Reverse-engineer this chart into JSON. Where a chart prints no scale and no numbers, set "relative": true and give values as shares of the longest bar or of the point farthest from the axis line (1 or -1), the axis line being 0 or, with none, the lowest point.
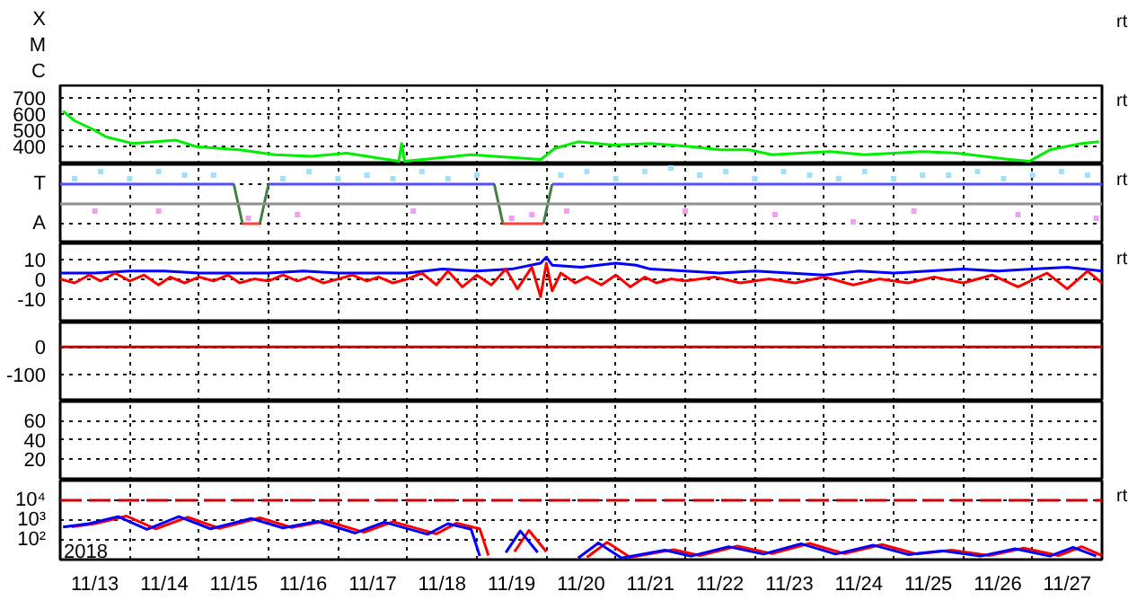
{
  "chart_data": [
    {
      "type": "other",
      "y_categories": [
        "X",
        "M",
        "C"
      ],
      "annotations": [
        "rt"
      ]
    },
    {
      "type": "line",
      "ylim": [
        290,
        780
      ],
      "yticks": [
        400,
        500,
        600,
        700
      ],
      "xlim": [
        "2018-11-13T00:00",
        "2018-11-28T00:00"
      ],
      "xticks": [
        {
          "value": "2018-11-14T00:00",
          "label": null
        },
        {
          "value": "2018-11-15T00:00",
          "label": null
        },
        {
          "value": "2018-11-16T00:00",
          "label": null
        },
        {
          "value": "2018-11-17T00:00",
          "label": null
        },
        {
          "value": "2018-11-18T00:00",
          "label": null
        },
        {
          "value": "2018-11-19T00:00",
          "label": null
        },
        {
          "value": "2018-11-20T00:00",
          "label": null
        },
        {
          "value": "2018-11-21T00:00",
          "label": null
        },
        {
          "value": "2018-11-22T00:00",
          "label": null
        },
        {
          "value": "2018-11-23T00:00",
          "label": null
        },
        {
          "value": "2018-11-24T00:00",
          "label": null
        },
        {
          "value": "2018-11-25T00:00",
          "label": null
        },
        {
          "value": "2018-11-26T00:00",
          "label": null
        },
        {
          "value": "2018-11-27T00:00",
          "label": null
        }
      ],
      "tick_labels": "y",
      "grid": true,
      "line_style": "solid",
      "annotations": [
        "rt"
      ],
      "series": [
        {
          "color": "#00ee00",
          "x": [
            "2018-11-13T01:00",
            "2018-11-13T05:00",
            "2018-11-13T11:00",
            "2018-11-13T16:00",
            "2018-11-14T01:00",
            "2018-11-14T16:00",
            "2018-11-14T23:00",
            "2018-11-15T14:00",
            "2018-11-16T02:00",
            "2018-11-16T15:00",
            "2018-11-17T03:00",
            "2018-11-17T21:00",
            "2018-11-17T22:00",
            "2018-11-17T23:00",
            "2018-11-18T22:00",
            "2018-11-19T22:00",
            "2018-11-20T03:00",
            "2018-11-20T11:00",
            "2018-11-20T23:00",
            "2018-11-21T12:00",
            "2018-11-22T02:00",
            "2018-11-22T12:00",
            "2018-11-22T22:00",
            "2018-11-23T06:00",
            "2018-11-24T02:00",
            "2018-11-24T14:00",
            "2018-11-25T10:00",
            "2018-11-25T22:00",
            "2018-11-26T16:00",
            "2018-11-26T23:00",
            "2018-11-27T06:00",
            "2018-11-27T17:00",
            "2018-11-27T23:00"
          ],
          "values": [
            620,
            560,
            510,
            460,
            420,
            440,
            400,
            380,
            350,
            340,
            360,
            310,
            420,
            310,
            350,
            320,
            390,
            430,
            410,
            420,
            400,
            380,
            380,
            350,
            370,
            350,
            370,
            360,
            320,
            310,
            380,
            420,
            430
          ]
        }
      ]
    },
    {
      "type": "line",
      "relative": true,
      "y_categories": [
        "T",
        "A"
      ],
      "xlim": [
        "2018-11-13T00:00",
        "2018-11-28T00:00"
      ],
      "xticks": [
        {
          "value": "2018-11-14T00:00",
          "label": null
        },
        {
          "value": "2018-11-15T00:00",
          "label": null
        },
        {
          "value": "2018-11-16T00:00",
          "label": null
        },
        {
          "value": "2018-11-17T00:00",
          "label": null
        },
        {
          "value": "2018-11-18T00:00",
          "label": null
        },
        {
          "value": "2018-11-19T00:00",
          "label": null
        },
        {
          "value": "2018-11-20T00:00",
          "label": null
        },
        {
          "value": "2018-11-21T00:00",
          "label": null
        },
        {
          "value": "2018-11-22T00:00",
          "label": null
        },
        {
          "value": "2018-11-23T00:00",
          "label": null
        },
        {
          "value": "2018-11-24T00:00",
          "label": null
        },
        {
          "value": "2018-11-25T00:00",
          "label": null
        },
        {
          "value": "2018-11-26T00:00",
          "label": null
        },
        {
          "value": "2018-11-27T00:00",
          "label": null
        }
      ],
      "tick_labels": "y",
      "grid": true,
      "line_style": "solid",
      "annotations": [
        "rt"
      ],
      "ref_lines": [
        {
          "axis": "y",
          "value": 0,
          "label": null,
          "color": "#909090"
        }
      ],
      "series": [
        {
          "type": "scatter",
          "color": "#a0e0f8",
          "x": [
            "2018-11-13T05:00",
            "2018-11-13T14:00",
            "2018-11-14T00:00",
            "2018-11-14T10:00",
            "2018-11-14T19:00",
            "2018-11-15T05:00",
            "2018-11-16T05:00",
            "2018-11-16T14:00",
            "2018-11-17T00:00",
            "2018-11-17T10:00",
            "2018-11-17T19:00",
            "2018-11-18T05:00",
            "2018-11-18T14:00",
            "2018-11-19T00:00",
            "2018-11-20T05:00",
            "2018-11-20T14:00",
            "2018-11-21T00:00",
            "2018-11-21T10:00",
            "2018-11-21T19:00",
            "2018-11-22T05:00",
            "2018-11-22T14:00",
            "2018-11-23T00:00",
            "2018-11-23T10:00",
            "2018-11-23T19:00",
            "2018-11-24T05:00",
            "2018-11-24T14:00",
            "2018-11-25T00:00",
            "2018-11-25T10:00",
            "2018-11-25T19:00",
            "2018-11-26T05:00",
            "2018-11-26T14:00",
            "2018-11-27T00:00",
            "2018-11-27T10:00",
            "2018-11-27T19:00"
          ],
          "values": [
            0.7,
            0.9,
            0.7,
            0.9,
            0.8,
            0.8,
            0.7,
            0.9,
            0.7,
            0.8,
            0.7,
            0.9,
            0.7,
            0.8,
            0.8,
            0.9,
            0.7,
            0.9,
            1,
            0.8,
            0.9,
            0.7,
            0.9,
            0.8,
            0.7,
            0.9,
            0.7,
            0.8,
            0.8,
            0.9,
            0.7,
            0.8,
            0.9,
            0.8
          ]
        },
        {
          "type": "scatter",
          "color": "#f0a0f0",
          "x": [
            "2018-11-13T12:00",
            "2018-11-14T10:00",
            "2018-11-15T17:00",
            "2018-11-16T10:00",
            "2018-11-18T02:00",
            "2018-11-19T12:00",
            "2018-11-19T19:00",
            "2018-11-20T07:00",
            "2018-11-22T00:00",
            "2018-11-23T07:00",
            "2018-11-24T10:00",
            "2018-11-25T07:00",
            "2018-11-26T19:00",
            "2018-11-27T22:00"
          ],
          "values": [
            -0.2,
            -0.2,
            -0.4,
            -0.3,
            -0.2,
            -0.4,
            -0.3,
            -0.2,
            -0.2,
            -0.3,
            -0.5,
            -0.2,
            -0.3,
            -0.4
          ]
        },
        {
          "color": "#5050ff",
          "x": [
            "2018-11-13T00:00",
            "2018-11-15T12:00",
            null,
            "2018-11-16T00:00",
            "2018-11-19T06:00",
            null,
            "2018-11-20T02:00",
            "2018-11-28T00:00"
          ],
          "values": [
            0.55,
            0.55,
            null,
            0.55,
            0.55,
            null,
            0.55,
            0.55
          ]
        },
        {
          "color": "#408040",
          "x": [
            "2018-11-15T12:00",
            "2018-11-15T15:00",
            null,
            "2018-11-15T21:00",
            "2018-11-16T00:00",
            null,
            "2018-11-19T06:00",
            "2018-11-19T09:00",
            null,
            "2018-11-19T23:00",
            "2018-11-20T02:00"
          ],
          "values": [
            0.55,
            -0.55,
            null,
            -0.55,
            0.55,
            null,
            0.55,
            -0.55,
            null,
            -0.55,
            0.55
          ]
        },
        {
          "color": "#ff4040",
          "x": [
            "2018-11-15T15:00",
            "2018-11-15T21:00",
            null,
            "2018-11-19T09:00",
            "2018-11-19T23:00"
          ],
          "values": [
            -0.55,
            -0.55,
            null,
            -0.55,
            -0.55
          ]
        }
      ]
    },
    {
      "type": "line",
      "ylim": [
        -22,
        18
      ],
      "yticks": [
        10,
        0,
        -10
      ],
      "xlim": [
        "2018-11-13T00:00",
        "2018-11-28T00:00"
      ],
      "xticks": [
        {
          "value": "2018-11-14T00:00",
          "label": null
        },
        {
          "value": "2018-11-15T00:00",
          "label": null
        },
        {
          "value": "2018-11-16T00:00",
          "label": null
        },
        {
          "value": "2018-11-17T00:00",
          "label": null
        },
        {
          "value": "2018-11-18T00:00",
          "label": null
        },
        {
          "value": "2018-11-19T00:00",
          "label": null
        },
        {
          "value": "2018-11-20T00:00",
          "label": null
        },
        {
          "value": "2018-11-21T00:00",
          "label": null
        },
        {
          "value": "2018-11-22T00:00",
          "label": null
        },
        {
          "value": "2018-11-23T00:00",
          "label": null
        },
        {
          "value": "2018-11-24T00:00",
          "label": null
        },
        {
          "value": "2018-11-25T00:00",
          "label": null
        },
        {
          "value": "2018-11-26T00:00",
          "label": null
        },
        {
          "value": "2018-11-27T00:00",
          "label": null
        }
      ],
      "tick_labels": "y",
      "grid": true,
      "line_style": "solid",
      "annotations": [
        "rt"
      ],
      "series": [
        {
          "color": "#0000ff",
          "x": [
            "2018-11-13T00:00",
            "2018-11-13T12:00",
            "2018-11-14T00:00",
            "2018-11-14T12:00",
            "2018-11-15T00:00",
            "2018-11-15T12:00",
            "2018-11-16T00:00",
            "2018-11-16T12:00",
            "2018-11-17T00:00",
            "2018-11-17T12:00",
            "2018-11-18T00:00",
            "2018-11-18T12:00",
            "2018-11-19T00:00",
            "2018-11-19T12:00",
            "2018-11-19T22:00",
            "2018-11-20T00:00",
            "2018-11-20T02:00",
            "2018-11-20T12:00",
            "2018-11-21T00:00",
            "2018-11-21T07:00",
            "2018-11-21T12:00",
            "2018-11-22T00:00",
            "2018-11-22T12:00",
            "2018-11-23T00:00",
            "2018-11-23T12:00",
            "2018-11-24T00:00",
            "2018-11-24T12:00",
            "2018-11-25T00:00",
            "2018-11-25T12:00",
            "2018-11-26T00:00",
            "2018-11-26T12:00",
            "2018-11-27T00:00",
            "2018-11-27T12:00",
            "2018-11-28T00:00"
          ],
          "values": [
            3,
            3,
            4,
            4,
            3,
            3,
            3,
            4,
            3,
            3,
            3,
            5,
            4,
            5,
            8,
            11,
            7,
            6,
            8,
            7,
            5,
            4,
            3,
            4,
            3,
            2,
            4,
            3,
            4,
            5,
            4,
            5,
            6,
            4
          ]
        },
        {
          "color": "#ff0000",
          "x": [
            "2018-11-13T00:00",
            "2018-11-13T05:00",
            "2018-11-13T10:00",
            "2018-11-13T14:00",
            "2018-11-13T19:00",
            "2018-11-14T00:00",
            "2018-11-14T05:00",
            "2018-11-14T10:00",
            "2018-11-14T14:00",
            "2018-11-14T19:00",
            "2018-11-15T00:00",
            "2018-11-15T05:00",
            "2018-11-15T10:00",
            "2018-11-15T14:00",
            "2018-11-15T19:00",
            "2018-11-16T00:00",
            "2018-11-16T05:00",
            "2018-11-16T10:00",
            "2018-11-16T14:00",
            "2018-11-16T19:00",
            "2018-11-17T00:00",
            "2018-11-17T05:00",
            "2018-11-17T10:00",
            "2018-11-17T14:00",
            "2018-11-17T19:00",
            "2018-11-18T00:00",
            "2018-11-18T05:00",
            "2018-11-18T10:00",
            "2018-11-18T14:00",
            "2018-11-18T19:00",
            "2018-11-19T00:00",
            "2018-11-19T05:00",
            "2018-11-19T10:00",
            "2018-11-19T14:00",
            "2018-11-19T19:00",
            "2018-11-19T22:00",
            "2018-11-20T00:00",
            "2018-11-20T02:00",
            "2018-11-20T05:00",
            "2018-11-20T10:00",
            "2018-11-20T14:00",
            "2018-11-20T19:00",
            "2018-11-21T00:00",
            "2018-11-21T05:00",
            "2018-11-21T10:00",
            "2018-11-21T14:00",
            "2018-11-21T19:00",
            "2018-11-22T00:00",
            "2018-11-22T10:00",
            "2018-11-22T19:00",
            "2018-11-23T05:00",
            "2018-11-23T14:00",
            "2018-11-24T00:00",
            "2018-11-24T10:00",
            "2018-11-24T19:00",
            "2018-11-25T05:00",
            "2018-11-25T14:00",
            "2018-11-26T00:00",
            "2018-11-26T10:00",
            "2018-11-26T19:00",
            "2018-11-27T05:00",
            "2018-11-27T12:00",
            "2018-11-27T19:00",
            "2018-11-28T00:00"
          ],
          "values": [
            0,
            -2,
            2,
            -1,
            3,
            -1,
            2,
            -3,
            1,
            -2,
            1,
            -1,
            2,
            -2,
            0,
            -1,
            2,
            -1,
            1,
            -2,
            0,
            2,
            -1,
            1,
            -2,
            0,
            3,
            -3,
            4,
            -4,
            2,
            -3,
            5,
            -5,
            6,
            -9,
            8,
            -6,
            3,
            -2,
            1,
            -3,
            2,
            -4,
            1,
            -2,
            0,
            -1,
            1,
            -2,
            0,
            -2,
            1,
            -3,
            0,
            -2,
            1,
            -2,
            2,
            -4,
            3,
            -5,
            4,
            -2
          ]
        }
      ]
    },
    {
      "type": "line",
      "ylim": [
        -200,
        90
      ],
      "yticks": [
        0,
        -100
      ],
      "xlim": [
        "2018-11-13T00:00",
        "2018-11-28T00:00"
      ],
      "xticks": [
        {
          "value": "2018-11-14T00:00",
          "label": null
        },
        {
          "value": "2018-11-15T00:00",
          "label": null
        },
        {
          "value": "2018-11-16T00:00",
          "label": null
        },
        {
          "value": "2018-11-17T00:00",
          "label": null
        },
        {
          "value": "2018-11-18T00:00",
          "label": null
        },
        {
          "value": "2018-11-19T00:00",
          "label": null
        },
        {
          "value": "2018-11-20T00:00",
          "label": null
        },
        {
          "value": "2018-11-21T00:00",
          "label": null
        },
        {
          "value": "2018-11-22T00:00",
          "label": null
        },
        {
          "value": "2018-11-23T00:00",
          "label": null
        },
        {
          "value": "2018-11-24T00:00",
          "label": null
        },
        {
          "value": "2018-11-25T00:00",
          "label": null
        },
        {
          "value": "2018-11-26T00:00",
          "label": null
        },
        {
          "value": "2018-11-27T00:00",
          "label": null
        }
      ],
      "tick_labels": "y",
      "grid": true,
      "ref_lines": [
        {
          "axis": "y",
          "value": 0,
          "label": null,
          "color": "#cc0000"
        }
      ]
    },
    {
      "type": "line",
      "ylim": [
        -2,
        80
      ],
      "yticks": [
        60,
        40,
        20
      ],
      "xlim": [
        "2018-11-13T00:00",
        "2018-11-28T00:00"
      ],
      "xticks": [
        {
          "value": "2018-11-14T00:00",
          "label": null
        },
        {
          "value": "2018-11-15T00:00",
          "label": null
        },
        {
          "value": "2018-11-16T00:00",
          "label": null
        },
        {
          "value": "2018-11-17T00:00",
          "label": null
        },
        {
          "value": "2018-11-18T00:00",
          "label": null
        },
        {
          "value": "2018-11-19T00:00",
          "label": null
        },
        {
          "value": "2018-11-20T00:00",
          "label": null
        },
        {
          "value": "2018-11-21T00:00",
          "label": null
        },
        {
          "value": "2018-11-22T00:00",
          "label": null
        },
        {
          "value": "2018-11-23T00:00",
          "label": null
        },
        {
          "value": "2018-11-24T00:00",
          "label": null
        },
        {
          "value": "2018-11-25T00:00",
          "label": null
        },
        {
          "value": "2018-11-26T00:00",
          "label": null
        },
        {
          "value": "2018-11-27T00:00",
          "label": null
        }
      ],
      "tick_labels": "y",
      "grid": true
    },
    {
      "type": "line",
      "log": "y",
      "ylim": [
        10,
        100000
      ],
      "yticks": [
        {
          "value": 10000,
          "label": "10⁴"
        },
        {
          "value": 1000,
          "label": "10³"
        },
        {
          "value": 100,
          "label": "10²"
        }
      ],
      "xlim": [
        "2018-11-13T00:00",
        "2018-11-28T00:00"
      ],
      "xlabel": "2018",
      "xticks": [
        {
          "value": "2018-11-13T12:00",
          "label": "11/13"
        },
        {
          "value": "2018-11-14T00:00",
          "label": null
        },
        {
          "value": "2018-11-14T12:00",
          "label": "11/14"
        },
        {
          "value": "2018-11-15T00:00",
          "label": null
        },
        {
          "value": "2018-11-15T12:00",
          "label": "11/15"
        },
        {
          "value": "2018-11-16T00:00",
          "label": null
        },
        {
          "value": "2018-11-16T12:00",
          "label": "11/16"
        },
        {
          "value": "2018-11-17T00:00",
          "label": null
        },
        {
          "value": "2018-11-17T12:00",
          "label": "11/17"
        },
        {
          "value": "2018-11-18T00:00",
          "label": null
        },
        {
          "value": "2018-11-18T12:00",
          "label": "11/18"
        },
        {
          "value": "2018-11-19T00:00",
          "label": null
        },
        {
          "value": "2018-11-19T12:00",
          "label": "11/19"
        },
        {
          "value": "2018-11-20T00:00",
          "label": null
        },
        {
          "value": "2018-11-20T12:00",
          "label": "11/20"
        },
        {
          "value": "2018-11-21T00:00",
          "label": null
        },
        {
          "value": "2018-11-21T12:00",
          "label": "11/21"
        },
        {
          "value": "2018-11-22T00:00",
          "label": null
        },
        {
          "value": "2018-11-22T12:00",
          "label": "11/22"
        },
        {
          "value": "2018-11-23T00:00",
          "label": null
        },
        {
          "value": "2018-11-23T12:00",
          "label": "11/23"
        },
        {
          "value": "2018-11-24T00:00",
          "label": null
        },
        {
          "value": "2018-11-24T12:00",
          "label": "11/24"
        },
        {
          "value": "2018-11-25T00:00",
          "label": null
        },
        {
          "value": "2018-11-25T12:00",
          "label": "11/25"
        },
        {
          "value": "2018-11-26T00:00",
          "label": null
        },
        {
          "value": "2018-11-26T12:00",
          "label": "11/26"
        },
        {
          "value": "2018-11-27T00:00",
          "label": null
        },
        {
          "value": "2018-11-27T12:00",
          "label": "11/27"
        }
      ],
      "grid": true,
      "line_style": "solid",
      "annotations": [
        "rt"
      ],
      "ref_lines": [
        {
          "axis": "y",
          "value": 10000,
          "label": null,
          "color": "#cc0000",
          "line_style": "dashed"
        }
      ],
      "series": [
        {
          "color": "#ff0000",
          "x": [
            "2018-11-13T04:00",
            "2018-11-13T13:00",
            "2018-11-13T23:00",
            "2018-11-14T09:00",
            "2018-11-14T20:00",
            "2018-11-15T07:00",
            "2018-11-15T21:00",
            "2018-11-16T08:00",
            "2018-11-16T20:00",
            "2018-11-17T09:00",
            "2018-11-17T19:00",
            "2018-11-18T10:00",
            "2018-11-18T17:00",
            "2018-11-19T01:00",
            "2018-11-19T04:00",
            "2018-11-19T08:00",
            "2018-11-19T13:00",
            "2018-11-19T18:00",
            "2018-11-20T00:00",
            "2018-11-20T04:00",
            "2018-11-20T14:00",
            "2018-11-20T21:00",
            "2018-11-21T05:00",
            "2018-11-21T20:00",
            "2018-11-22T05:00",
            "2018-11-22T18:00",
            "2018-11-23T06:00",
            "2018-11-23T19:00",
            "2018-11-24T07:00",
            "2018-11-24T20:00",
            "2018-11-25T08:00",
            "2018-11-25T20:00",
            "2018-11-26T09:00",
            "2018-11-26T21:00",
            "2018-11-27T09:00",
            "2018-11-27T17:00",
            "2018-11-28T00:00"
          ],
          "values": [
            460,
            700,
            1600,
            360,
            1400,
            380,
            1300,
            420,
            900,
            240,
            820,
            200,
            700,
            360,
            16,
            null,
            25,
            300,
            25,
            null,
            13,
            75,
            13,
            32,
            16,
            48,
            20,
            66,
            20,
            58,
            19,
            30,
            16,
            38,
            16,
            45,
            16
          ]
        },
        {
          "color": "#0000ff",
          "x": [
            "2018-11-13T01:00",
            "2018-11-13T10:00",
            "2018-11-13T20:00",
            "2018-11-14T06:00",
            "2018-11-14T17:00",
            "2018-11-15T04:00",
            "2018-11-15T18:00",
            "2018-11-16T05:00",
            "2018-11-16T17:00",
            "2018-11-17T06:00",
            "2018-11-17T16:00",
            "2018-11-18T07:00",
            "2018-11-18T14:00",
            "2018-11-18T22:00",
            "2018-11-19T01:00",
            "2018-11-19T05:00",
            "2018-11-19T10:00",
            "2018-11-19T15:00",
            "2018-11-19T21:00",
            "2018-11-20T01:00",
            "2018-11-20T11:00",
            "2018-11-20T18:00",
            "2018-11-21T02:00",
            "2018-11-21T17:00",
            "2018-11-22T02:00",
            "2018-11-22T15:00",
            "2018-11-23T03:00",
            "2018-11-23T16:00",
            "2018-11-24T04:00",
            "2018-11-24T17:00",
            "2018-11-25T05:00",
            "2018-11-25T17:00",
            "2018-11-26T06:00",
            "2018-11-26T18:00",
            "2018-11-27T06:00",
            "2018-11-27T14:00",
            "2018-11-27T22:00"
          ],
          "values": [
            440,
            660,
            1500,
            340,
            1500,
            360,
            1200,
            400,
            850,
            220,
            780,
            190,
            660,
            340,
            15,
            null,
            23,
            280,
            23,
            null,
            12,
            69,
            12,
            30,
            15,
            45,
            19,
            63,
            19,
            54,
            18,
            28,
            15,
            35,
            15,
            42,
            15
          ]
        }
      ]
    }
  ]
}
